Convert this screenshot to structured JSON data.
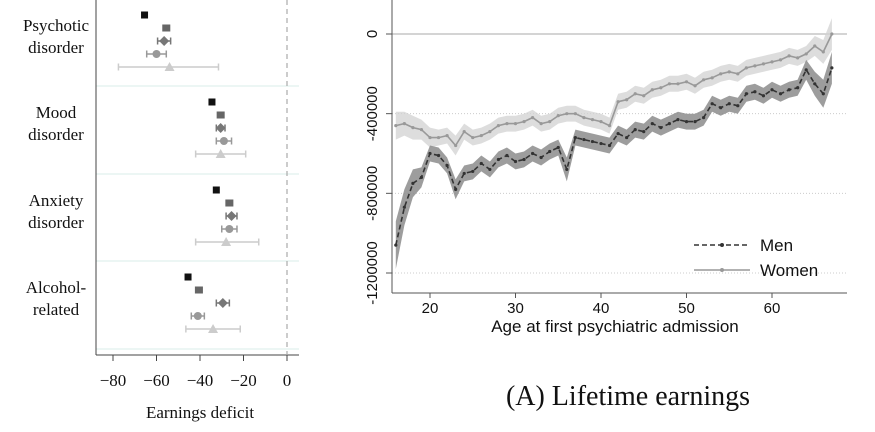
{
  "chart_data": [
    {
      "type": "scatter",
      "subtype": "dot-and-whisker",
      "xlabel": "Earnings deficit",
      "xlim": [
        -85,
        3
      ],
      "xticks": [
        -80,
        -60,
        -40,
        -20,
        0
      ],
      "reference_line": 0,
      "categories": [
        "Psychotic disorder",
        "Mood disorder",
        "Anxiety disorder",
        "Alcohol-related"
      ],
      "category_lines": [
        [
          "Psychotic",
          "disorder"
        ],
        [
          "Mood",
          "disorder"
        ],
        [
          "Anxiety",
          "disorder"
        ],
        [
          "Alcohol-",
          "related"
        ]
      ],
      "groups": [
        {
          "name": "Psychotic disorder",
          "points": [
            {
              "marker": "square",
              "color": "#111111",
              "value": -65.5,
              "lo": -66.5,
              "hi": -64.5
            },
            {
              "marker": "square",
              "color": "#666666",
              "value": -55.5,
              "lo": -57.0,
              "hi": -54.0
            },
            {
              "marker": "diamond",
              "color": "#777777",
              "value": -56.5,
              "lo": -59.5,
              "hi": -53.5
            },
            {
              "marker": "circle",
              "color": "#999999",
              "value": -60.0,
              "lo": -64.5,
              "hi": -55.5
            },
            {
              "marker": "triangle",
              "color": "#cccccc",
              "value": -54.0,
              "lo": -77.5,
              "hi": -31.5
            }
          ]
        },
        {
          "name": "Mood disorder",
          "points": [
            {
              "marker": "square",
              "color": "#111111",
              "value": -34.5,
              "lo": -35.5,
              "hi": -33.5
            },
            {
              "marker": "square",
              "color": "#666666",
              "value": -30.5,
              "lo": -32.0,
              "hi": -29.0
            },
            {
              "marker": "diamond",
              "color": "#777777",
              "value": -30.5,
              "lo": -32.5,
              "hi": -28.5
            },
            {
              "marker": "circle",
              "color": "#999999",
              "value": -29.0,
              "lo": -32.5,
              "hi": -25.5
            },
            {
              "marker": "triangle",
              "color": "#cccccc",
              "value": -30.5,
              "lo": -42.0,
              "hi": -19.0
            }
          ]
        },
        {
          "name": "Anxiety disorder",
          "points": [
            {
              "marker": "square",
              "color": "#111111",
              "value": -32.5,
              "lo": -33.5,
              "hi": -31.5
            },
            {
              "marker": "square",
              "color": "#666666",
              "value": -26.5,
              "lo": -28.0,
              "hi": -25.0
            },
            {
              "marker": "diamond",
              "color": "#777777",
              "value": -25.5,
              "lo": -28.0,
              "hi": -23.0
            },
            {
              "marker": "circle",
              "color": "#999999",
              "value": -26.5,
              "lo": -30.0,
              "hi": -23.0
            },
            {
              "marker": "triangle",
              "color": "#cccccc",
              "value": -28.0,
              "lo": -42.0,
              "hi": -13.0
            }
          ]
        },
        {
          "name": "Alcohol-related",
          "points": [
            {
              "marker": "square",
              "color": "#111111",
              "value": -45.5,
              "lo": -46.5,
              "hi": -44.5
            },
            {
              "marker": "square",
              "color": "#666666",
              "value": -40.5,
              "lo": -42.0,
              "hi": -39.0
            },
            {
              "marker": "diamond",
              "color": "#777777",
              "value": -29.5,
              "lo": -32.5,
              "hi": -26.5
            },
            {
              "marker": "circle",
              "color": "#999999",
              "value": -41.0,
              "lo": -44.0,
              "hi": -38.0
            },
            {
              "marker": "triangle",
              "color": "#cccccc",
              "value": -34.0,
              "lo": -46.5,
              "hi": -21.5
            }
          ]
        }
      ]
    },
    {
      "type": "line",
      "title": "(A) Lifetime earnings",
      "xlabel": "Age at first psychiatric admission",
      "ylabel": "",
      "xlim": [
        15.3,
        67.7
      ],
      "ylim": [
        -1300000,
        130000
      ],
      "xticks": [
        20,
        30,
        40,
        50,
        60
      ],
      "yticks": [
        0,
        -400000,
        -800000,
        -1200000
      ],
      "grid": "horizontal dotted",
      "legend_position": "bottom-right",
      "x": [
        16,
        17,
        18,
        19,
        20,
        21,
        22,
        23,
        24,
        25,
        26,
        27,
        28,
        29,
        30,
        31,
        32,
        33,
        34,
        35,
        36,
        37,
        38,
        39,
        40,
        41,
        42,
        43,
        44,
        45,
        46,
        47,
        48,
        49,
        50,
        51,
        52,
        53,
        54,
        55,
        56,
        57,
        58,
        59,
        60,
        61,
        62,
        63,
        64,
        65,
        66,
        67
      ],
      "series": [
        {
          "name": "Men",
          "color": "#333333",
          "style": "dashed",
          "values": [
            -1060000,
            -870000,
            -750000,
            -720000,
            -600000,
            -610000,
            -660000,
            -780000,
            -700000,
            -690000,
            -650000,
            -680000,
            -630000,
            -610000,
            -640000,
            -630000,
            -600000,
            -620000,
            -590000,
            -570000,
            -680000,
            -520000,
            -530000,
            -540000,
            -550000,
            -560000,
            -500000,
            -520000,
            -480000,
            -490000,
            -450000,
            -470000,
            -450000,
            -430000,
            -440000,
            -440000,
            -420000,
            -350000,
            -370000,
            -350000,
            -360000,
            -300000,
            -290000,
            -310000,
            -280000,
            -300000,
            -280000,
            -270000,
            -180000,
            -250000,
            -300000,
            -170000
          ],
          "band_width": [
            120000,
            90000,
            70000,
            50000,
            40000,
            40000,
            40000,
            50000,
            40000,
            40000,
            40000,
            40000,
            40000,
            40000,
            40000,
            40000,
            40000,
            40000,
            40000,
            40000,
            60000,
            40000,
            40000,
            40000,
            40000,
            40000,
            40000,
            40000,
            40000,
            40000,
            40000,
            40000,
            40000,
            40000,
            40000,
            40000,
            40000,
            40000,
            40000,
            40000,
            40000,
            40000,
            40000,
            40000,
            40000,
            40000,
            40000,
            40000,
            50000,
            60000,
            70000,
            80000
          ]
        },
        {
          "name": "Women",
          "color": "#999999",
          "style": "solid",
          "values": [
            -460000,
            -450000,
            -470000,
            -480000,
            -520000,
            -520000,
            -510000,
            -560000,
            -490000,
            -520000,
            -510000,
            -490000,
            -460000,
            -450000,
            -450000,
            -440000,
            -420000,
            -450000,
            -440000,
            -410000,
            -400000,
            -400000,
            -420000,
            -430000,
            -440000,
            -460000,
            -340000,
            -330000,
            -300000,
            -310000,
            -280000,
            -270000,
            -250000,
            -250000,
            -240000,
            -260000,
            -230000,
            -220000,
            -200000,
            -190000,
            -200000,
            -170000,
            -160000,
            -150000,
            -140000,
            -130000,
            -110000,
            -120000,
            -100000,
            -60000,
            -90000,
            0
          ],
          "band_width": [
            70000,
            60000,
            60000,
            50000,
            50000,
            40000,
            40000,
            50000,
            40000,
            40000,
            40000,
            40000,
            40000,
            40000,
            40000,
            40000,
            40000,
            40000,
            40000,
            40000,
            40000,
            40000,
            40000,
            40000,
            40000,
            40000,
            40000,
            40000,
            40000,
            40000,
            40000,
            40000,
            40000,
            40000,
            40000,
            40000,
            40000,
            40000,
            40000,
            40000,
            40000,
            40000,
            40000,
            40000,
            40000,
            40000,
            40000,
            40000,
            40000,
            50000,
            60000,
            80000
          ]
        }
      ]
    }
  ]
}
